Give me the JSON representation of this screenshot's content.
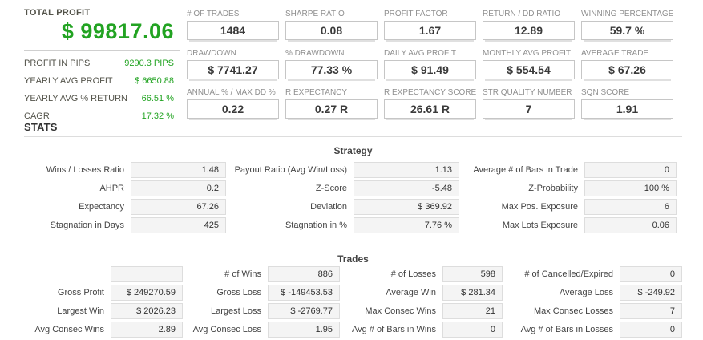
{
  "colors": {
    "accent_green": "#22a322",
    "label_gray": "#8f8f8f",
    "value_dark": "#3a3a3a"
  },
  "summary": {
    "title": "TOTAL PROFIT",
    "total_profit": "$ 99817.06",
    "rows": [
      {
        "label": "PROFIT IN PIPS",
        "value": "9290.3 PIPS"
      },
      {
        "label": "YEARLY AVG PROFIT",
        "value": "$ 6650.88"
      },
      {
        "label": "YEARLY AVG % RETURN",
        "value": "66.51 %"
      },
      {
        "label": "CAGR",
        "value": "17.32 %"
      }
    ]
  },
  "metrics": [
    {
      "label": "# OF TRADES",
      "value": "1484"
    },
    {
      "label": "SHARPE RATIO",
      "value": "0.08"
    },
    {
      "label": "PROFIT FACTOR",
      "value": "1.67"
    },
    {
      "label": "RETURN / DD RATIO",
      "value": "12.89"
    },
    {
      "label": "WINNING PERCENTAGE",
      "value": "59.7 %"
    },
    {
      "label": "DRAWDOWN",
      "value": "$ 7741.27"
    },
    {
      "label": "% DRAWDOWN",
      "value": "77.33 %"
    },
    {
      "label": "DAILY AVG PROFIT",
      "value": "$ 91.49"
    },
    {
      "label": "MONTHLY AVG PROFIT",
      "value": "$ 554.54"
    },
    {
      "label": "AVERAGE TRADE",
      "value": "$ 67.26"
    },
    {
      "label": "ANNUAL % / MAX DD %",
      "value": "0.22"
    },
    {
      "label": "R EXPECTANCY",
      "value": "0.27 R"
    },
    {
      "label": "R EXPECTANCY SCORE",
      "value": "26.61 R"
    },
    {
      "label": "STR QUALITY NUMBER",
      "value": "7"
    },
    {
      "label": "SQN SCORE",
      "value": "1.91"
    }
  ],
  "stats": {
    "heading": "STATS",
    "strategy": {
      "heading": "Strategy",
      "cells": [
        {
          "label": "Wins / Losses Ratio",
          "value": "1.48"
        },
        {
          "label": "Payout Ratio (Avg Win/Loss)",
          "value": "1.13"
        },
        {
          "label": "Average # of Bars in Trade",
          "value": "0"
        },
        {
          "label": "AHPR",
          "value": "0.2"
        },
        {
          "label": "Z-Score",
          "value": "-5.48"
        },
        {
          "label": "Z-Probability",
          "value": "100 %"
        },
        {
          "label": "Expectancy",
          "value": "67.26"
        },
        {
          "label": "Deviation",
          "value": "$ 369.92"
        },
        {
          "label": "Max Pos. Exposure",
          "value": "6"
        },
        {
          "label": "Stagnation in Days",
          "value": "425"
        },
        {
          "label": "Stagnation in %",
          "value": "7.76 %"
        },
        {
          "label": "Max Lots Exposure",
          "value": "0.06"
        }
      ]
    },
    "trades": {
      "heading": "Trades",
      "cells": [
        {
          "label": "",
          "value": ""
        },
        {
          "label": "# of Wins",
          "value": "886"
        },
        {
          "label": "# of Losses",
          "value": "598"
        },
        {
          "label": "# of Cancelled/Expired",
          "value": "0"
        },
        {
          "label": "Gross Profit",
          "value": "$ 249270.59"
        },
        {
          "label": "Gross Loss",
          "value": "$ -149453.53"
        },
        {
          "label": "Average Win",
          "value": "$ 281.34"
        },
        {
          "label": "Average Loss",
          "value": "$ -249.92"
        },
        {
          "label": "Largest Win",
          "value": "$ 2026.23"
        },
        {
          "label": "Largest Loss",
          "value": "$ -2769.77"
        },
        {
          "label": "Max Consec Wins",
          "value": "21"
        },
        {
          "label": "Max Consec Losses",
          "value": "7"
        },
        {
          "label": "Avg Consec Wins",
          "value": "2.89"
        },
        {
          "label": "Avg Consec Loss",
          "value": "1.95"
        },
        {
          "label": "Avg # of Bars in Wins",
          "value": "0"
        },
        {
          "label": "Avg # of Bars in Losses",
          "value": "0"
        }
      ]
    }
  }
}
